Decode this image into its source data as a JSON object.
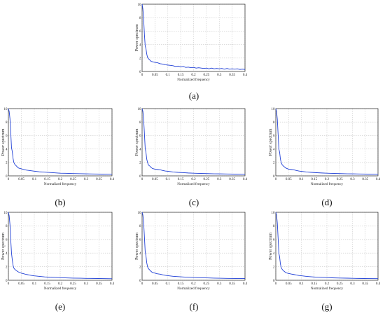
{
  "colors": {
    "line": "#1f3fd6",
    "grid": "#c9c9c9",
    "axis": "#222222"
  },
  "chart_data": [
    {
      "type": "line",
      "panel": "a",
      "caption": "(a)",
      "xlabel": "Normalized frequency",
      "ylabel": "Power spectrum",
      "xlim": [
        0,
        0.4
      ],
      "ylim": [
        0,
        10
      ],
      "xticks": [
        "0",
        "0.05",
        "0.1",
        "0.15",
        "0.2",
        "0.25",
        "0.3",
        "0.35",
        "0.4"
      ],
      "yticks": [
        "0",
        "2",
        "4",
        "6",
        "8",
        "10"
      ],
      "grid": true,
      "series": [
        {
          "values": [
            [
              0,
              10
            ],
            [
              0.003,
              9.3
            ],
            [
              0.006,
              7.8
            ],
            [
              0.009,
              5.5
            ],
            [
              0.012,
              3.8
            ],
            [
              0.015,
              3.4
            ],
            [
              0.018,
              2.6
            ],
            [
              0.021,
              2.1
            ],
            [
              0.025,
              1.9
            ],
            [
              0.03,
              1.7
            ],
            [
              0.035,
              1.5
            ],
            [
              0.04,
              1.45
            ],
            [
              0.05,
              1.35
            ],
            [
              0.06,
              1.3
            ],
            [
              0.07,
              1.15
            ],
            [
              0.08,
              1.1
            ],
            [
              0.09,
              1.0
            ],
            [
              0.1,
              0.95
            ],
            [
              0.11,
              0.9
            ],
            [
              0.12,
              0.85
            ],
            [
              0.13,
              0.75
            ],
            [
              0.14,
              0.8
            ],
            [
              0.15,
              0.7
            ],
            [
              0.16,
              0.75
            ],
            [
              0.17,
              0.6
            ],
            [
              0.18,
              0.65
            ],
            [
              0.19,
              0.55
            ],
            [
              0.2,
              0.6
            ],
            [
              0.21,
              0.5
            ],
            [
              0.22,
              0.55
            ],
            [
              0.23,
              0.5
            ],
            [
              0.24,
              0.45
            ],
            [
              0.25,
              0.5
            ],
            [
              0.26,
              0.4
            ],
            [
              0.27,
              0.5
            ],
            [
              0.28,
              0.4
            ],
            [
              0.29,
              0.45
            ],
            [
              0.3,
              0.4
            ],
            [
              0.31,
              0.45
            ],
            [
              0.32,
              0.35
            ],
            [
              0.33,
              0.45
            ],
            [
              0.34,
              0.35
            ],
            [
              0.35,
              0.4
            ],
            [
              0.36,
              0.35
            ],
            [
              0.37,
              0.4
            ],
            [
              0.38,
              0.3
            ],
            [
              0.39,
              0.35
            ],
            [
              0.4,
              0.3
            ]
          ]
        }
      ]
    },
    {
      "type": "line",
      "panel": "b",
      "caption": "(b)",
      "xlabel": "Normalized frequency",
      "ylabel": "Power spectrum",
      "xlim": [
        0,
        0.4
      ],
      "ylim": [
        0,
        10
      ],
      "xticks": [
        "0",
        "0.05",
        "0.1",
        "0.15",
        "0.2",
        "0.25",
        "0.3",
        "0.35",
        "0.4"
      ],
      "yticks": [
        "0",
        "2",
        "4",
        "6",
        "8",
        "10"
      ],
      "grid": true,
      "series": [
        {
          "values": [
            [
              0,
              10
            ],
            [
              0.003,
              9.6
            ],
            [
              0.006,
              8.5
            ],
            [
              0.009,
              6.5
            ],
            [
              0.012,
              4.2
            ],
            [
              0.015,
              3.6
            ],
            [
              0.018,
              2.6
            ],
            [
              0.021,
              2.0
            ],
            [
              0.025,
              1.7
            ],
            [
              0.03,
              1.5
            ],
            [
              0.035,
              1.3
            ],
            [
              0.04,
              1.15
            ],
            [
              0.05,
              1.05
            ],
            [
              0.06,
              0.95
            ],
            [
              0.07,
              0.85
            ],
            [
              0.08,
              0.8
            ],
            [
              0.09,
              0.75
            ],
            [
              0.1,
              0.7
            ],
            [
              0.12,
              0.6
            ],
            [
              0.14,
              0.55
            ],
            [
              0.16,
              0.5
            ],
            [
              0.18,
              0.45
            ],
            [
              0.2,
              0.4
            ],
            [
              0.22,
              0.38
            ],
            [
              0.25,
              0.35
            ],
            [
              0.28,
              0.32
            ],
            [
              0.3,
              0.3
            ],
            [
              0.33,
              0.28
            ],
            [
              0.36,
              0.26
            ],
            [
              0.4,
              0.25
            ]
          ]
        }
      ]
    },
    {
      "type": "line",
      "panel": "c",
      "caption": "(c)",
      "xlabel": "Normalized frequency",
      "ylabel": "Power spectrum",
      "xlim": [
        0,
        0.4
      ],
      "ylim": [
        0,
        10
      ],
      "xticks": [
        "0",
        "0.05",
        "0.1",
        "0.15",
        "0.2",
        "0.25",
        "0.3",
        "0.35",
        "0.4"
      ],
      "yticks": [
        "0",
        "2",
        "4",
        "6",
        "8",
        "10"
      ],
      "grid": true,
      "series": [
        {
          "values": [
            [
              0,
              10
            ],
            [
              0.003,
              9.6
            ],
            [
              0.006,
              8.4
            ],
            [
              0.009,
              6.3
            ],
            [
              0.012,
              4.1
            ],
            [
              0.015,
              3.5
            ],
            [
              0.018,
              2.5
            ],
            [
              0.021,
              2.0
            ],
            [
              0.025,
              1.6
            ],
            [
              0.03,
              1.45
            ],
            [
              0.035,
              1.25
            ],
            [
              0.04,
              1.1
            ],
            [
              0.05,
              1.0
            ],
            [
              0.06,
              0.95
            ],
            [
              0.07,
              0.9
            ],
            [
              0.08,
              0.8
            ],
            [
              0.09,
              0.72
            ],
            [
              0.1,
              0.68
            ],
            [
              0.12,
              0.58
            ],
            [
              0.14,
              0.52
            ],
            [
              0.16,
              0.48
            ],
            [
              0.18,
              0.43
            ],
            [
              0.2,
              0.4
            ],
            [
              0.22,
              0.37
            ],
            [
              0.25,
              0.34
            ],
            [
              0.28,
              0.31
            ],
            [
              0.3,
              0.3
            ],
            [
              0.33,
              0.28
            ],
            [
              0.36,
              0.26
            ],
            [
              0.4,
              0.24
            ]
          ]
        }
      ]
    },
    {
      "type": "line",
      "panel": "d",
      "caption": "(d)",
      "xlabel": "Normalized frequency",
      "ylabel": "Power spectrum",
      "xlim": [
        0,
        0.4
      ],
      "ylim": [
        0,
        10
      ],
      "xticks": [
        "0",
        "0.05",
        "0.1",
        "0.15",
        "0.2",
        "0.25",
        "0.3",
        "0.35",
        "0.4"
      ],
      "yticks": [
        "0",
        "2",
        "4",
        "6",
        "8",
        "10"
      ],
      "grid": true,
      "series": [
        {
          "values": [
            [
              0,
              10
            ],
            [
              0.003,
              9.6
            ],
            [
              0.006,
              8.4
            ],
            [
              0.009,
              6.2
            ],
            [
              0.012,
              4.0
            ],
            [
              0.015,
              3.5
            ],
            [
              0.018,
              2.5
            ],
            [
              0.021,
              2.0
            ],
            [
              0.025,
              1.65
            ],
            [
              0.03,
              1.45
            ],
            [
              0.035,
              1.3
            ],
            [
              0.04,
              1.15
            ],
            [
              0.05,
              1.0
            ],
            [
              0.06,
              0.95
            ],
            [
              0.07,
              0.9
            ],
            [
              0.08,
              0.8
            ],
            [
              0.09,
              0.72
            ],
            [
              0.1,
              0.67
            ],
            [
              0.12,
              0.58
            ],
            [
              0.14,
              0.52
            ],
            [
              0.16,
              0.47
            ],
            [
              0.18,
              0.43
            ],
            [
              0.2,
              0.4
            ],
            [
              0.22,
              0.37
            ],
            [
              0.25,
              0.34
            ],
            [
              0.28,
              0.31
            ],
            [
              0.3,
              0.3
            ],
            [
              0.33,
              0.28
            ],
            [
              0.36,
              0.26
            ],
            [
              0.4,
              0.24
            ]
          ]
        }
      ]
    },
    {
      "type": "line",
      "panel": "e",
      "caption": "(e)",
      "xlabel": "Normalized frequency",
      "ylabel": "Power spectrum",
      "xlim": [
        0,
        0.4
      ],
      "ylim": [
        0,
        10
      ],
      "xticks": [
        "0",
        "0.05",
        "0.1",
        "0.15",
        "0.2",
        "0.25",
        "0.3",
        "0.35",
        "0.4"
      ],
      "yticks": [
        "0",
        "2",
        "4",
        "6",
        "8",
        "10"
      ],
      "grid": true,
      "series": [
        {
          "values": [
            [
              0,
              10
            ],
            [
              0.003,
              9.5
            ],
            [
              0.006,
              8.2
            ],
            [
              0.009,
              6.0
            ],
            [
              0.012,
              4.0
            ],
            [
              0.015,
              3.0
            ],
            [
              0.018,
              2.2
            ],
            [
              0.021,
              1.8
            ],
            [
              0.025,
              1.6
            ],
            [
              0.03,
              1.45
            ],
            [
              0.035,
              1.3
            ],
            [
              0.04,
              1.2
            ],
            [
              0.05,
              1.05
            ],
            [
              0.06,
              0.95
            ],
            [
              0.07,
              0.85
            ],
            [
              0.08,
              0.78
            ],
            [
              0.09,
              0.7
            ],
            [
              0.1,
              0.65
            ],
            [
              0.12,
              0.57
            ],
            [
              0.14,
              0.5
            ],
            [
              0.16,
              0.45
            ],
            [
              0.18,
              0.42
            ],
            [
              0.2,
              0.38
            ],
            [
              0.22,
              0.35
            ],
            [
              0.25,
              0.32
            ],
            [
              0.28,
              0.3
            ],
            [
              0.3,
              0.28
            ],
            [
              0.33,
              0.27
            ],
            [
              0.36,
              0.25
            ],
            [
              0.4,
              0.23
            ]
          ]
        }
      ]
    },
    {
      "type": "line",
      "panel": "f",
      "caption": "(f)",
      "xlabel": "Normalized frequency",
      "ylabel": "Power spectrum",
      "xlim": [
        0,
        0.4
      ],
      "ylim": [
        0,
        10
      ],
      "xticks": [
        "0",
        "0.05",
        "0.1",
        "0.15",
        "0.2",
        "0.25",
        "0.3",
        "0.35",
        "0.4"
      ],
      "yticks": [
        "0",
        "2",
        "4",
        "6",
        "8",
        "10"
      ],
      "grid": true,
      "series": [
        {
          "values": [
            [
              0,
              10
            ],
            [
              0.003,
              9.6
            ],
            [
              0.006,
              8.5
            ],
            [
              0.009,
              6.4
            ],
            [
              0.012,
              4.2
            ],
            [
              0.015,
              3.6
            ],
            [
              0.018,
              2.6
            ],
            [
              0.021,
              2.0
            ],
            [
              0.025,
              1.7
            ],
            [
              0.03,
              1.5
            ],
            [
              0.035,
              1.3
            ],
            [
              0.04,
              1.15
            ],
            [
              0.05,
              1.05
            ],
            [
              0.06,
              0.95
            ],
            [
              0.07,
              0.9
            ],
            [
              0.08,
              0.8
            ],
            [
              0.09,
              0.73
            ],
            [
              0.1,
              0.68
            ],
            [
              0.12,
              0.59
            ],
            [
              0.14,
              0.53
            ],
            [
              0.16,
              0.48
            ],
            [
              0.18,
              0.44
            ],
            [
              0.2,
              0.41
            ],
            [
              0.22,
              0.38
            ],
            [
              0.25,
              0.35
            ],
            [
              0.28,
              0.32
            ],
            [
              0.3,
              0.3
            ],
            [
              0.33,
              0.28
            ],
            [
              0.36,
              0.26
            ],
            [
              0.4,
              0.25
            ]
          ]
        }
      ]
    },
    {
      "type": "line",
      "panel": "g",
      "caption": "(g)",
      "xlabel": "Normalized frequency",
      "ylabel": "Power spectrum",
      "xlim": [
        0,
        0.4
      ],
      "ylim": [
        0,
        10
      ],
      "xticks": [
        "0",
        "0.05",
        "0.1",
        "0.15",
        "0.2",
        "0.25",
        "0.3",
        "0.35",
        "0.4"
      ],
      "yticks": [
        "0",
        "2",
        "4",
        "6",
        "8",
        "10"
      ],
      "grid": true,
      "series": [
        {
          "values": [
            [
              0,
              10
            ],
            [
              0.003,
              9.6
            ],
            [
              0.006,
              8.4
            ],
            [
              0.009,
              6.2
            ],
            [
              0.012,
              4.0
            ],
            [
              0.015,
              3.4
            ],
            [
              0.018,
              2.4
            ],
            [
              0.021,
              1.9
            ],
            [
              0.025,
              1.6
            ],
            [
              0.03,
              1.4
            ],
            [
              0.035,
              1.25
            ],
            [
              0.04,
              1.1
            ],
            [
              0.05,
              1.0
            ],
            [
              0.06,
              0.92
            ],
            [
              0.07,
              0.85
            ],
            [
              0.08,
              0.78
            ],
            [
              0.09,
              0.7
            ],
            [
              0.1,
              0.66
            ],
            [
              0.12,
              0.57
            ],
            [
              0.14,
              0.51
            ],
            [
              0.16,
              0.46
            ],
            [
              0.18,
              0.42
            ],
            [
              0.2,
              0.39
            ],
            [
              0.22,
              0.36
            ],
            [
              0.25,
              0.33
            ],
            [
              0.28,
              0.31
            ],
            [
              0.3,
              0.29
            ],
            [
              0.33,
              0.27
            ],
            [
              0.36,
              0.25
            ],
            [
              0.4,
              0.24
            ]
          ]
        }
      ]
    }
  ]
}
